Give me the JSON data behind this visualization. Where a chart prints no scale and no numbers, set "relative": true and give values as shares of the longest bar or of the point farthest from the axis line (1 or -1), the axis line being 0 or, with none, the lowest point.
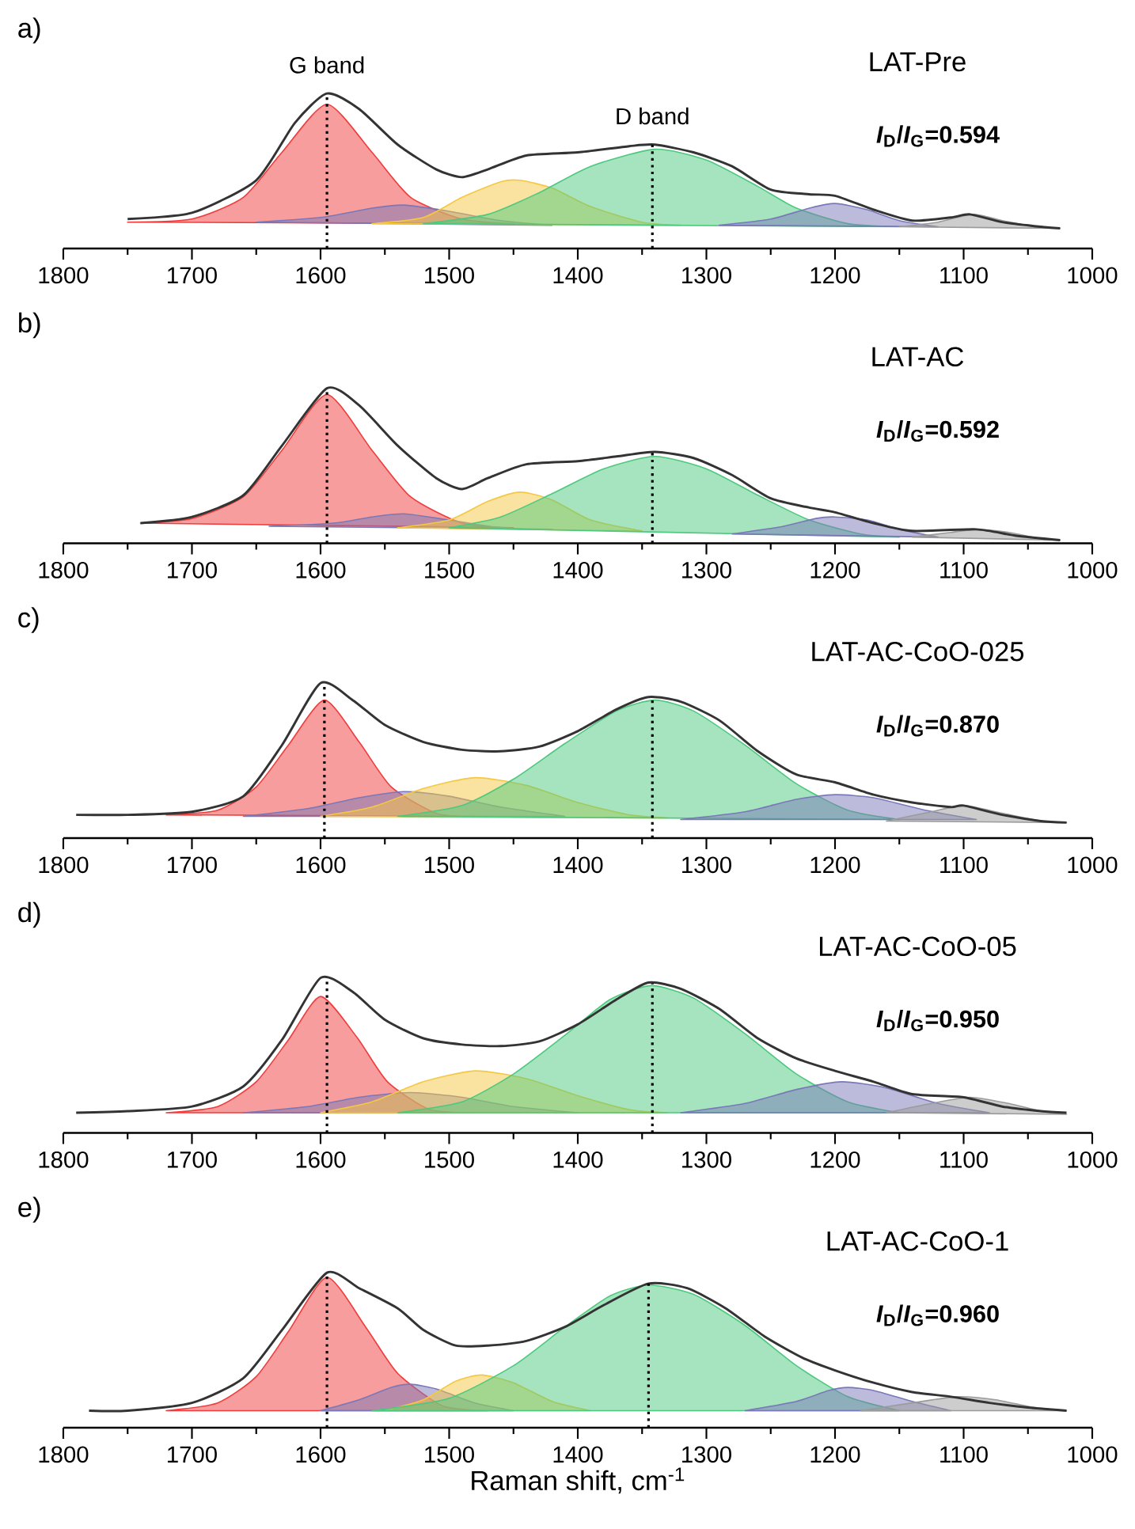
{
  "chart_data": [
    {
      "type": "area",
      "relative": true,
      "title": "a)",
      "subtitle": "LAT-Pre",
      "annotations": [
        {
          "text": "G band",
          "x": 1595,
          "y": 1.0
        },
        {
          "text": "D band",
          "x": 1342,
          "y": 0.67
        },
        "*I*$_{D}$/*I*$_{G}$=0.594"
      ],
      "xlim": [
        1800,
        1000
      ],
      "xticks": [
        1800,
        {
          "value": 1750,
          "label": null
        },
        1700,
        {
          "value": 1650,
          "label": null
        },
        1600,
        {
          "value": 1550,
          "label": null
        },
        1500,
        {
          "value": 1450,
          "label": null
        },
        1400,
        {
          "value": 1350,
          "label": null
        },
        1300,
        {
          "value": 1250,
          "label": null
        },
        1200,
        {
          "value": 1150,
          "label": null
        },
        1100,
        {
          "value": 1050,
          "label": null
        },
        1000
      ],
      "ref_lines": [
        {
          "axis": "x",
          "value": 1595,
          "line_style": "dotted",
          "color": "#000000"
        },
        {
          "axis": "x",
          "value": 1342,
          "line_style": "dotted",
          "color": "#000000"
        }
      ],
      "series": [
        {
          "color": "#f03c3c",
          "x": [
            1750,
            1700,
            1660,
            1630,
            1595,
            1560,
            1530,
            1490,
            1450
          ],
          "values": [
            0.17,
            0.19,
            0.33,
            0.62,
            0.93,
            0.62,
            0.33,
            0.19,
            0.16
          ]
        },
        {
          "color": "#7a78b8",
          "x": [
            1650,
            1600,
            1560,
            1535,
            1500,
            1460,
            1420
          ],
          "values": [
            0.17,
            0.2,
            0.26,
            0.28,
            0.24,
            0.18,
            0.15
          ]
        },
        {
          "color": "#f5c842",
          "x": [
            1560,
            1520,
            1490,
            1460,
            1445,
            1420,
            1390,
            1350,
            1320
          ],
          "values": [
            0.16,
            0.2,
            0.33,
            0.43,
            0.44,
            0.39,
            0.27,
            0.17,
            0.15
          ]
        },
        {
          "color": "#4cc97e",
          "x": [
            1520,
            1470,
            1430,
            1390,
            1340,
            1300,
            1260,
            1230,
            1190,
            1150
          ],
          "values": [
            0.16,
            0.22,
            0.36,
            0.53,
            0.64,
            0.57,
            0.4,
            0.26,
            0.16,
            0.14
          ]
        },
        {
          "color": "#7a78b8",
          "x": [
            1290,
            1250,
            1220,
            1200,
            1175,
            1150,
            1120
          ],
          "values": [
            0.15,
            0.19,
            0.26,
            0.29,
            0.25,
            0.18,
            0.14
          ]
        },
        {
          "color": "#9b9b9b",
          "x": [
            1150,
            1120,
            1093,
            1070,
            1045,
            1025
          ],
          "values": [
            0.14,
            0.17,
            0.22,
            0.18,
            0.14,
            0.13
          ]
        },
        {
          "type": "line",
          "color": "#333333",
          "x": [
            1750,
            1700,
            1650,
            1620,
            1595,
            1570,
            1540,
            1510,
            1490,
            1470,
            1440,
            1400,
            1360,
            1340,
            1310,
            1280,
            1250,
            1220,
            1200,
            1170,
            1140,
            1110,
            1095,
            1070,
            1040,
            1025
          ],
          "values": [
            0.19,
            0.23,
            0.44,
            0.81,
            1.0,
            0.9,
            0.67,
            0.51,
            0.46,
            0.51,
            0.6,
            0.62,
            0.66,
            0.67,
            0.62,
            0.53,
            0.38,
            0.35,
            0.34,
            0.25,
            0.18,
            0.2,
            0.22,
            0.17,
            0.14,
            0.13
          ]
        }
      ]
    },
    {
      "type": "area",
      "relative": true,
      "title": "b)",
      "subtitle": "LAT-AC",
      "annotations": [
        "*I*$_{D}$/*I*$_{G}$=0.592"
      ],
      "xlim": [
        1800,
        1000
      ],
      "xticks": [
        1800,
        {
          "value": 1750,
          "label": null
        },
        1700,
        {
          "value": 1650,
          "label": null
        },
        1600,
        {
          "value": 1550,
          "label": null
        },
        1500,
        {
          "value": 1450,
          "label": null
        },
        1400,
        {
          "value": 1350,
          "label": null
        },
        1300,
        {
          "value": 1250,
          "label": null
        },
        1200,
        {
          "value": 1150,
          "label": null
        },
        1100,
        {
          "value": 1050,
          "label": null
        },
        1000
      ],
      "ref_lines": [
        {
          "axis": "x",
          "value": 1595,
          "line_style": "dotted",
          "color": "#000000"
        },
        {
          "axis": "x",
          "value": 1342,
          "line_style": "dotted",
          "color": "#000000"
        }
      ],
      "series": [
        {
          "color": "#f03c3c",
          "x": [
            1740,
            1700,
            1660,
            1630,
            1595,
            1560,
            1530,
            1490,
            1450
          ],
          "values": [
            0.13,
            0.16,
            0.3,
            0.6,
            0.96,
            0.6,
            0.3,
            0.13,
            0.1
          ]
        },
        {
          "color": "#7a78b8",
          "x": [
            1640,
            1590,
            1560,
            1535,
            1500,
            1460,
            1420
          ],
          "values": [
            0.11,
            0.13,
            0.17,
            0.19,
            0.15,
            0.1,
            0.09
          ]
        },
        {
          "color": "#f5c842",
          "x": [
            1540,
            1500,
            1470,
            1445,
            1420,
            1390,
            1350
          ],
          "values": [
            0.1,
            0.15,
            0.27,
            0.33,
            0.28,
            0.15,
            0.08
          ]
        },
        {
          "color": "#4cc97e",
          "x": [
            1500,
            1460,
            1420,
            1380,
            1340,
            1300,
            1260,
            1220,
            1180,
            1150
          ],
          "values": [
            0.1,
            0.17,
            0.32,
            0.48,
            0.56,
            0.48,
            0.31,
            0.15,
            0.06,
            0.04
          ]
        },
        {
          "color": "#7a78b8",
          "x": [
            1280,
            1240,
            1215,
            1200,
            1175,
            1150,
            1120
          ],
          "values": [
            0.06,
            0.11,
            0.16,
            0.17,
            0.15,
            0.09,
            0.04
          ]
        },
        {
          "color": "#9b9b9b",
          "x": [
            1140,
            1110,
            1090,
            1065,
            1040,
            1025
          ],
          "values": [
            0.04,
            0.07,
            0.09,
            0.07,
            0.03,
            0.02
          ]
        },
        {
          "type": "line",
          "color": "#333333",
          "x": [
            1740,
            1700,
            1660,
            1630,
            1595,
            1570,
            1540,
            1510,
            1490,
            1470,
            1440,
            1400,
            1370,
            1340,
            1310,
            1280,
            1250,
            1220,
            1200,
            1170,
            1140,
            1090,
            1060,
            1025
          ],
          "values": [
            0.13,
            0.17,
            0.31,
            0.63,
            1.0,
            0.89,
            0.63,
            0.42,
            0.35,
            0.42,
            0.51,
            0.53,
            0.56,
            0.59,
            0.55,
            0.44,
            0.29,
            0.23,
            0.2,
            0.13,
            0.08,
            0.09,
            0.05,
            0.02
          ]
        }
      ]
    },
    {
      "type": "area",
      "relative": true,
      "title": "c)",
      "subtitle": "LAT-AC-CoO-025",
      "annotations": [
        "*I*$_{D}$/*I*$_{G}$=0.870"
      ],
      "xlim": [
        1800,
        1000
      ],
      "xticks": [
        1800,
        {
          "value": 1750,
          "label": null
        },
        1700,
        {
          "value": 1650,
          "label": null
        },
        1600,
        {
          "value": 1550,
          "label": null
        },
        1500,
        {
          "value": 1450,
          "label": null
        },
        1400,
        {
          "value": 1350,
          "label": null
        },
        1300,
        {
          "value": 1250,
          "label": null
        },
        1200,
        {
          "value": 1150,
          "label": null
        },
        1100,
        {
          "value": 1050,
          "label": null
        },
        1000
      ],
      "ref_lines": [
        {
          "axis": "x",
          "value": 1597,
          "line_style": "dotted",
          "color": "#000000"
        },
        {
          "axis": "x",
          "value": 1342,
          "line_style": "dotted",
          "color": "#000000"
        }
      ],
      "series": [
        {
          "color": "#f03c3c",
          "x": [
            1720,
            1680,
            1650,
            1625,
            1597,
            1570,
            1545,
            1510,
            1480
          ],
          "values": [
            0.15,
            0.18,
            0.33,
            0.6,
            0.89,
            0.62,
            0.33,
            0.16,
            0.14
          ]
        },
        {
          "color": "#7a78b8",
          "x": [
            1660,
            1610,
            1570,
            1535,
            1500,
            1460,
            1410
          ],
          "values": [
            0.14,
            0.19,
            0.26,
            0.3,
            0.27,
            0.2,
            0.14
          ]
        },
        {
          "color": "#f5c842",
          "x": [
            1600,
            1560,
            1520,
            1480,
            1440,
            1400,
            1360,
            1330
          ],
          "values": [
            0.14,
            0.2,
            0.32,
            0.39,
            0.34,
            0.23,
            0.15,
            0.13
          ]
        },
        {
          "color": "#4cc97e",
          "x": [
            1540,
            1490,
            1450,
            1410,
            1370,
            1340,
            1310,
            1270,
            1230,
            1190,
            1150
          ],
          "values": [
            0.14,
            0.21,
            0.38,
            0.61,
            0.82,
            0.89,
            0.82,
            0.6,
            0.35,
            0.18,
            0.12
          ]
        },
        {
          "color": "#7a78b8",
          "x": [
            1320,
            1270,
            1230,
            1200,
            1170,
            1130,
            1090
          ],
          "values": [
            0.12,
            0.17,
            0.25,
            0.28,
            0.26,
            0.18,
            0.12
          ]
        },
        {
          "color": "#9b9b9b",
          "x": [
            1160,
            1125,
            1100,
            1070,
            1040,
            1020
          ],
          "values": [
            0.11,
            0.17,
            0.21,
            0.16,
            0.11,
            0.1
          ]
        },
        {
          "type": "line",
          "color": "#333333",
          "x": [
            1790,
            1750,
            1700,
            1660,
            1630,
            1600,
            1575,
            1550,
            1520,
            1490,
            1460,
            1430,
            1400,
            1370,
            1345,
            1320,
            1290,
            1260,
            1230,
            1200,
            1170,
            1140,
            1110,
            1100,
            1070,
            1040,
            1020
          ],
          "values": [
            0.15,
            0.15,
            0.17,
            0.27,
            0.6,
            1.0,
            0.89,
            0.73,
            0.62,
            0.57,
            0.56,
            0.59,
            0.69,
            0.83,
            0.91,
            0.88,
            0.76,
            0.56,
            0.41,
            0.36,
            0.28,
            0.23,
            0.2,
            0.21,
            0.15,
            0.11,
            0.1
          ]
        }
      ]
    },
    {
      "type": "area",
      "relative": true,
      "title": "d)",
      "subtitle": "LAT-AC-CoO-05",
      "annotations": [
        "*I*$_{D}$/*I*$_{G}$=0.950"
      ],
      "xlim": [
        1800,
        1000
      ],
      "xticks": [
        1800,
        {
          "value": 1750,
          "label": null
        },
        1700,
        {
          "value": 1650,
          "label": null
        },
        1600,
        {
          "value": 1550,
          "label": null
        },
        1500,
        {
          "value": 1450,
          "label": null
        },
        1400,
        {
          "value": 1350,
          "label": null
        },
        1300,
        {
          "value": 1250,
          "label": null
        },
        1200,
        {
          "value": 1150,
          "label": null
        },
        1100,
        {
          "value": 1050,
          "label": null
        },
        1000
      ],
      "ref_lines": [
        {
          "axis": "x",
          "value": 1595,
          "line_style": "dotted",
          "color": "#000000"
        },
        {
          "axis": "x",
          "value": 1342,
          "line_style": "dotted",
          "color": "#000000"
        }
      ],
      "series": [
        {
          "color": "#f03c3c",
          "x": [
            1720,
            1680,
            1650,
            1625,
            1600,
            1572,
            1548,
            1515,
            1480
          ],
          "values": [
            0.13,
            0.17,
            0.33,
            0.6,
            0.88,
            0.62,
            0.33,
            0.15,
            0.13
          ]
        },
        {
          "color": "#7a78b8",
          "x": [
            1660,
            1610,
            1570,
            1530,
            1490,
            1450,
            1400
          ],
          "values": [
            0.13,
            0.17,
            0.23,
            0.26,
            0.23,
            0.17,
            0.13
          ]
        },
        {
          "color": "#f5c842",
          "x": [
            1600,
            1560,
            1520,
            1480,
            1440,
            1400,
            1360,
            1330
          ],
          "values": [
            0.13,
            0.2,
            0.33,
            0.4,
            0.35,
            0.24,
            0.15,
            0.13
          ]
        },
        {
          "color": "#4cc97e",
          "x": [
            1540,
            1490,
            1450,
            1410,
            1375,
            1343,
            1310,
            1270,
            1230,
            1190,
            1150
          ],
          "values": [
            0.13,
            0.2,
            0.38,
            0.63,
            0.86,
            0.95,
            0.87,
            0.64,
            0.38,
            0.2,
            0.13
          ]
        },
        {
          "color": "#7a78b8",
          "x": [
            1320,
            1270,
            1230,
            1195,
            1160,
            1120,
            1080
          ],
          "values": [
            0.13,
            0.19,
            0.28,
            0.33,
            0.29,
            0.19,
            0.13
          ]
        },
        {
          "color": "#9b9b9b",
          "x": [
            1160,
            1125,
            1095,
            1065,
            1040,
            1020
          ],
          "values": [
            0.13,
            0.19,
            0.23,
            0.19,
            0.14,
            0.12
          ]
        },
        {
          "type": "line",
          "color": "#333333",
          "x": [
            1790,
            1750,
            1700,
            1660,
            1630,
            1600,
            1575,
            1550,
            1520,
            1490,
            1460,
            1430,
            1400,
            1370,
            1345,
            1320,
            1290,
            1260,
            1230,
            1200,
            1170,
            1140,
            1100,
            1070,
            1040,
            1020
          ],
          "values": [
            0.13,
            0.14,
            0.17,
            0.3,
            0.6,
            1.0,
            0.91,
            0.73,
            0.61,
            0.57,
            0.56,
            0.59,
            0.7,
            0.86,
            0.97,
            0.93,
            0.8,
            0.61,
            0.48,
            0.4,
            0.33,
            0.25,
            0.23,
            0.17,
            0.14,
            0.13
          ]
        }
      ]
    },
    {
      "type": "area",
      "relative": true,
      "title": "e)",
      "subtitle": "LAT-AC-CoO-1",
      "xlabel": "Raman shift, cm$^{-1}$",
      "annotations": [
        "*I*$_{D}$/*I*$_{G}$=0.960"
      ],
      "xlim": [
        1800,
        1000
      ],
      "xticks": [
        1800,
        {
          "value": 1750,
          "label": null
        },
        1700,
        {
          "value": 1650,
          "label": null
        },
        1600,
        {
          "value": 1550,
          "label": null
        },
        1500,
        {
          "value": 1450,
          "label": null
        },
        1400,
        {
          "value": 1350,
          "label": null
        },
        1300,
        {
          "value": 1250,
          "label": null
        },
        1200,
        {
          "value": 1150,
          "label": null
        },
        1100,
        {
          "value": 1050,
          "label": null
        },
        1000
      ],
      "ref_lines": [
        {
          "axis": "x",
          "value": 1595,
          "line_style": "dotted",
          "color": "#000000"
        },
        {
          "axis": "x",
          "value": 1345,
          "line_style": "dotted",
          "color": "#000000"
        }
      ],
      "series": [
        {
          "color": "#f03c3c",
          "x": [
            1720,
            1680,
            1650,
            1625,
            1595,
            1565,
            1540,
            1505,
            1470
          ],
          "values": [
            0.11,
            0.16,
            0.33,
            0.62,
            0.97,
            0.65,
            0.35,
            0.14,
            0.11
          ]
        },
        {
          "color": "#7a78b8",
          "x": [
            1600,
            1570,
            1545,
            1530,
            1510,
            1480,
            1450
          ],
          "values": [
            0.11,
            0.18,
            0.26,
            0.28,
            0.25,
            0.16,
            0.11
          ]
        },
        {
          "color": "#f5c842",
          "x": [
            1550,
            1520,
            1495,
            1475,
            1450,
            1420,
            1390
          ],
          "values": [
            0.11,
            0.18,
            0.3,
            0.34,
            0.29,
            0.17,
            0.11
          ]
        },
        {
          "color": "#4cc97e",
          "x": [
            1560,
            1500,
            1450,
            1410,
            1375,
            1345,
            1310,
            1270,
            1230,
            1190,
            1150
          ],
          "values": [
            0.11,
            0.19,
            0.4,
            0.65,
            0.85,
            0.92,
            0.86,
            0.66,
            0.4,
            0.2,
            0.11
          ]
        },
        {
          "color": "#7a78b8",
          "x": [
            1270,
            1230,
            1205,
            1190,
            1170,
            1140,
            1110
          ],
          "values": [
            0.11,
            0.17,
            0.24,
            0.26,
            0.24,
            0.17,
            0.11
          ]
        },
        {
          "color": "#9b9b9b",
          "x": [
            1180,
            1140,
            1105,
            1075,
            1045,
            1020
          ],
          "values": [
            0.11,
            0.16,
            0.2,
            0.18,
            0.13,
            0.11
          ]
        },
        {
          "type": "line",
          "color": "#333333",
          "x": [
            1780,
            1750,
            1700,
            1660,
            1630,
            1595,
            1570,
            1540,
            1520,
            1495,
            1470,
            1440,
            1410,
            1380,
            1345,
            1315,
            1285,
            1255,
            1225,
            1200,
            1170,
            1140,
            1110,
            1080,
            1050,
            1020
          ],
          "values": [
            0.11,
            0.11,
            0.16,
            0.32,
            0.63,
            1.0,
            0.9,
            0.77,
            0.63,
            0.53,
            0.53,
            0.56,
            0.65,
            0.79,
            0.93,
            0.9,
            0.77,
            0.59,
            0.45,
            0.37,
            0.29,
            0.23,
            0.2,
            0.16,
            0.13,
            0.11
          ]
        }
      ]
    }
  ]
}
